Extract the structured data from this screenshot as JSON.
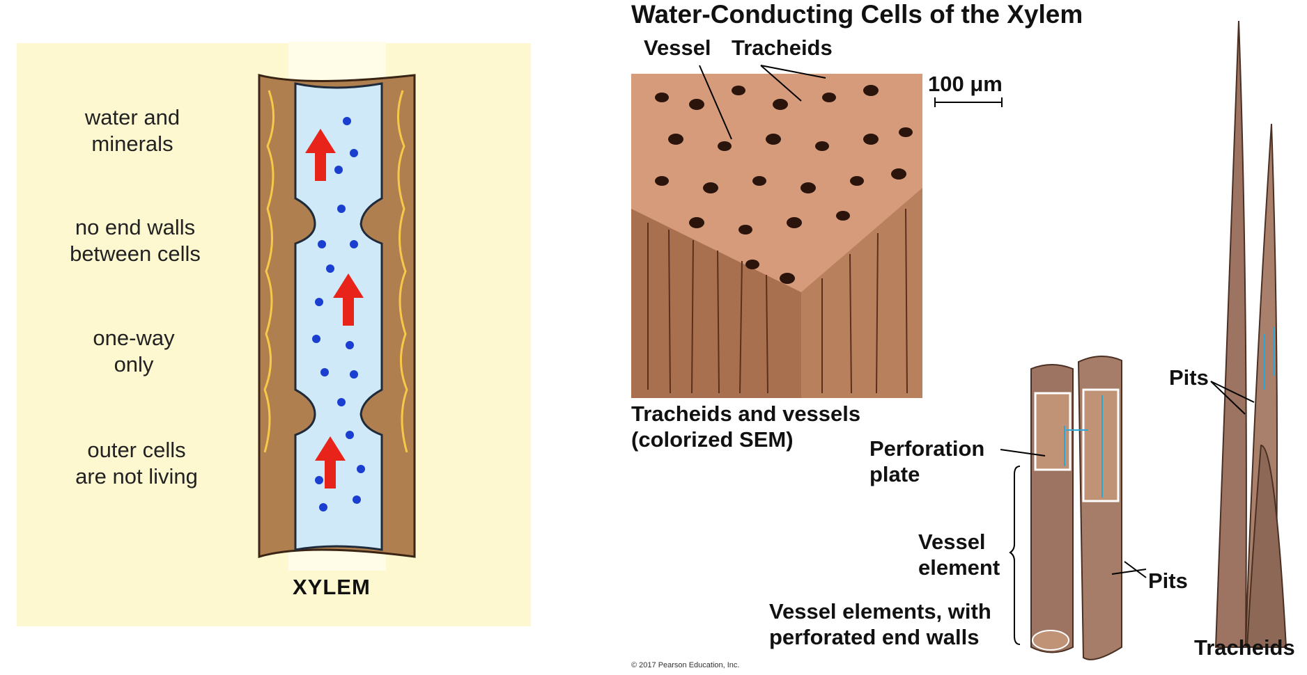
{
  "left_panel": {
    "labels": {
      "water": [
        "water and",
        "minerals"
      ],
      "no_end_walls": [
        "no end walls",
        "between cells"
      ],
      "one_way": [
        "one-way",
        "only"
      ],
      "outer_cells": [
        "outer cells",
        "are not living"
      ]
    },
    "title": "XYLEM"
  },
  "right_panel": {
    "title": "Water-Conducting Cells of the Xylem",
    "labels": {
      "vessel": "Vessel",
      "tracheids_top": "Tracheids",
      "scale": "100 μm",
      "sem_caption": [
        "Tracheids and vessels",
        "(colorized SEM)"
      ],
      "perforation_plate": [
        "Perforation",
        "plate"
      ],
      "vessel_element": [
        "Vessel",
        "element"
      ],
      "vessel_elements_caption": [
        "Vessel elements, with",
        "perforated end walls"
      ],
      "pits_right": "Pits",
      "pits_upper": "Pits",
      "tracheids_bottom": "Tracheids"
    },
    "copyright": "© 2017 Pearson Education, Inc."
  },
  "colors": {
    "panel_bg": "#fdf8cf",
    "cell_wall": "#b07f4f",
    "water": "#cfe9f8",
    "arrow": "#e8241a",
    "particle": "#1a3fd0",
    "sem": "#c98a6a",
    "tube": "#9c7461"
  }
}
